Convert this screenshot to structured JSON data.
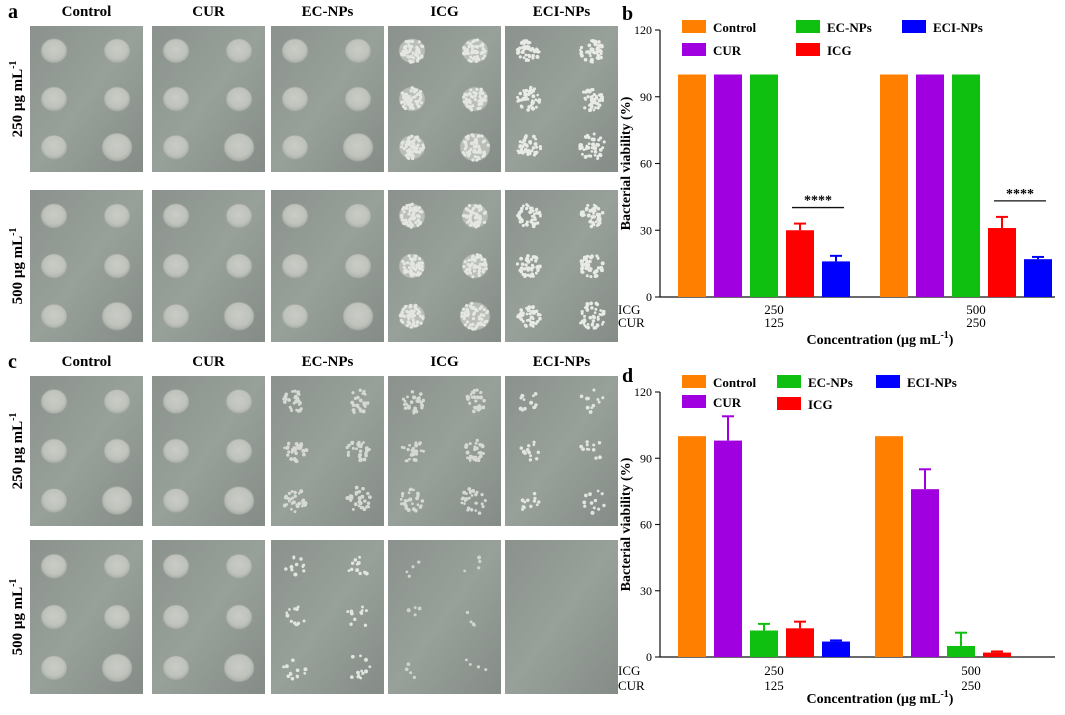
{
  "panels": {
    "a": {
      "letter": "a",
      "columns": [
        "Control",
        "CUR",
        "EC-NPs",
        "ICG",
        "ECI-NPs"
      ],
      "rows": [
        "250 μg mL",
        "500 μg mL"
      ],
      "row_superscript": "-1",
      "colony_density": [
        [
          "solid",
          "solid",
          "solid",
          "porous",
          "speckled"
        ],
        [
          "solid",
          "solid",
          "solid",
          "porous",
          "speckled"
        ]
      ]
    },
    "c": {
      "letter": "c",
      "columns": [
        "Control",
        "CUR",
        "EC-NPs",
        "ICG",
        "ECI-NPs"
      ],
      "rows": [
        "250 μg mL",
        "500 μg mL"
      ],
      "row_superscript": "-1",
      "colony_density": [
        [
          "solid",
          "solid",
          "faint",
          "faint",
          "sparse"
        ],
        [
          "solid",
          "solid",
          "sparse",
          "trace",
          "none"
        ]
      ]
    }
  },
  "legend_labels": [
    "Control",
    "CUR",
    "EC-NPs",
    "ICG",
    "ECI-NPs"
  ],
  "colors": {
    "Control": "#ff8000",
    "CUR": "#a000e0",
    "EC-NPs": "#10c010",
    "ICG": "#ff0000",
    "ECI-NPs": "#0000ff",
    "plate_bg": "#8e9590"
  },
  "chart_data": [
    {
      "panel": "b",
      "type": "bar",
      "ylabel": "Bacterial viability (%)",
      "xlabel": "Concentration (μg mL",
      "xlabel_sup": "-1",
      "xlabel_close": ")",
      "ylim": [
        0,
        120
      ],
      "yticks": [
        "0",
        "30",
        "60",
        "90",
        "120"
      ],
      "row_labels": [
        "ICG",
        "CUR"
      ],
      "groups": [
        {
          "icg": "250",
          "cur": "125"
        },
        {
          "icg": "500",
          "cur": "250"
        }
      ],
      "series": [
        {
          "name": "Control",
          "values": [
            100,
            100
          ],
          "errors": [
            0,
            0
          ]
        },
        {
          "name": "CUR",
          "values": [
            100,
            100
          ],
          "errors": [
            0,
            0
          ]
        },
        {
          "name": "EC-NPs",
          "values": [
            100,
            100
          ],
          "errors": [
            0,
            0
          ]
        },
        {
          "name": "ICG",
          "values": [
            30,
            31
          ],
          "errors": [
            3,
            5
          ]
        },
        {
          "name": "ECI-NPs",
          "values": [
            16,
            17
          ],
          "errors": [
            2.5,
            1
          ]
        }
      ],
      "significance": [
        {
          "group": 0,
          "label": "****",
          "between": [
            "ICG",
            "ECI-NPs"
          ]
        },
        {
          "group": 1,
          "label": "****",
          "between": [
            "ICG",
            "ECI-NPs"
          ]
        }
      ]
    },
    {
      "panel": "d",
      "type": "bar",
      "ylabel": "Bacterial viability (%)",
      "xlabel": "Concentration (μg mL",
      "xlabel_sup": "-1",
      "xlabel_close": ")",
      "ylim": [
        0,
        120
      ],
      "yticks": [
        "0",
        "30",
        "60",
        "90",
        "120"
      ],
      "row_labels": [
        "ICG",
        "CUR"
      ],
      "groups": [
        {
          "icg": "250",
          "cur": "125"
        },
        {
          "icg": "500",
          "cur": "250"
        }
      ],
      "series": [
        {
          "name": "Control",
          "values": [
            100,
            100
          ],
          "errors": [
            0,
            0
          ]
        },
        {
          "name": "CUR",
          "values": [
            98,
            76
          ],
          "errors": [
            11,
            9
          ]
        },
        {
          "name": "EC-NPs",
          "values": [
            12,
            5
          ],
          "errors": [
            3,
            6
          ]
        },
        {
          "name": "ICG",
          "values": [
            13,
            2
          ],
          "errors": [
            3,
            0.5
          ]
        },
        {
          "name": "ECI-NPs",
          "values": [
            7,
            0
          ],
          "errors": [
            0.5,
            0
          ]
        }
      ],
      "significance": []
    }
  ]
}
